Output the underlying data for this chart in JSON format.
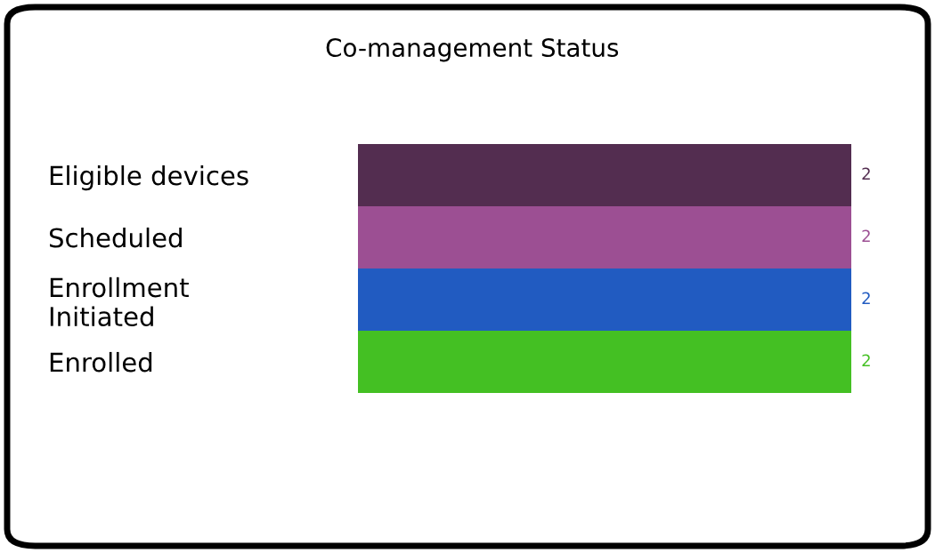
{
  "chart_data": {
    "type": "bar",
    "orientation": "horizontal",
    "title": "Co-management Status",
    "categories": [
      "Eligible devices",
      "Scheduled",
      "Enrollment\nInitiated",
      "Enrolled"
    ],
    "values": [
      2,
      2,
      2,
      2
    ],
    "colors": [
      "#532d50",
      "#9c4f93",
      "#215bc1",
      "#44c023"
    ],
    "data_labels": true,
    "grid": false,
    "legend": false
  }
}
